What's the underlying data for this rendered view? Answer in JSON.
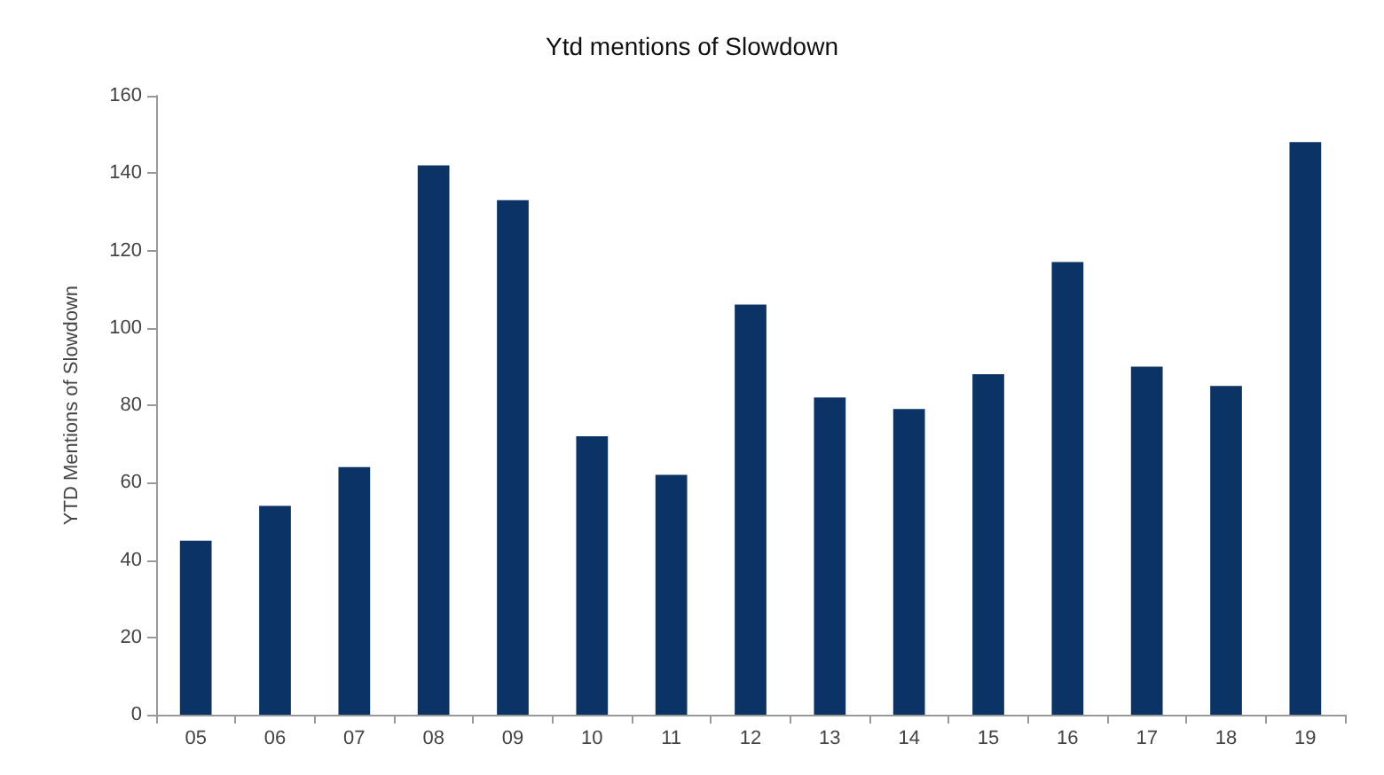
{
  "chart_data": {
    "type": "bar",
    "title": "Ytd mentions of Slowdown",
    "ylabel": "YTD Mentions of Slowdown",
    "categories": [
      "05",
      "06",
      "07",
      "08",
      "09",
      "10",
      "11",
      "12",
      "13",
      "14",
      "15",
      "16",
      "17",
      "18",
      "19"
    ],
    "values": [
      45,
      54,
      64,
      142,
      133,
      72,
      62,
      106,
      82,
      79,
      88,
      117,
      90,
      85,
      148
    ],
    "color": "#0b3366",
    "ylim": [
      0,
      160
    ],
    "yticks": [
      0,
      20,
      40,
      60,
      80,
      100,
      120,
      140,
      160
    ],
    "grid": false
  }
}
